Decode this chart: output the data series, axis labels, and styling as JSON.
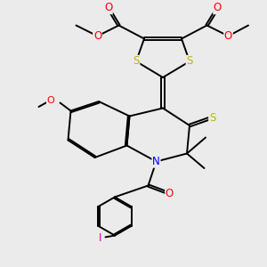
{
  "bg_color": "#ebebeb",
  "bond_color": "#000000",
  "bond_width": 1.4,
  "dbo": 0.06,
  "atom_colors": {
    "S": "#b8b800",
    "O": "#ff0000",
    "N": "#0000ee",
    "I": "#cc00cc",
    "C": "#000000"
  },
  "fs": 7.0
}
